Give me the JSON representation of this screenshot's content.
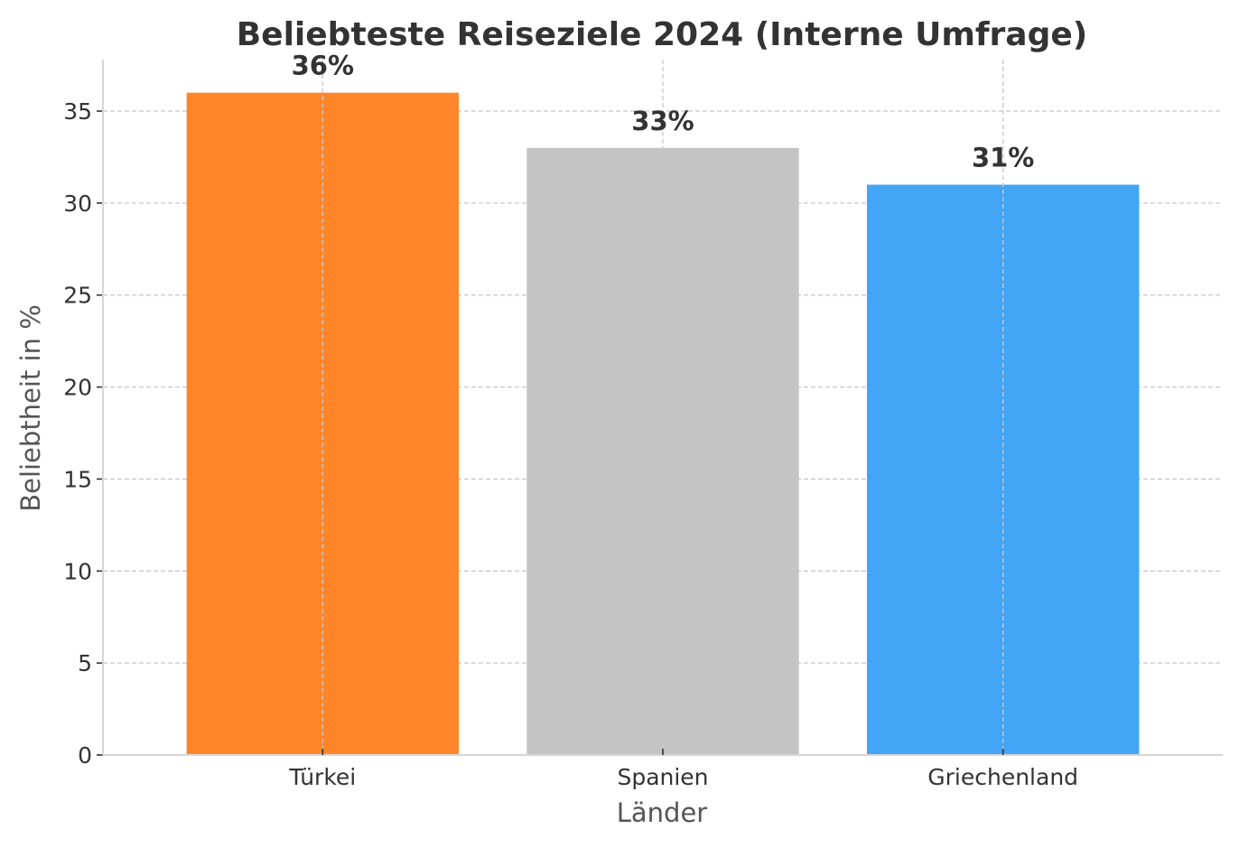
{
  "chart_data": {
    "type": "bar",
    "title": "Beliebteste Reiseziele 2024 (Interne Umfrage)",
    "xlabel": "Länder",
    "ylabel": "Beliebtheit in %",
    "categories": [
      "Türkei",
      "Spanien",
      "Griechenland"
    ],
    "values": [
      36,
      33,
      31
    ],
    "data_labels": [
      "36%",
      "33%",
      "31%"
    ],
    "colors": [
      "#ff8528",
      "#c4c4c4",
      "#42a5f5"
    ],
    "ylim": [
      0,
      37.8
    ],
    "yticks": [
      0,
      5,
      10,
      15,
      20,
      25,
      30,
      35
    ],
    "grid": true,
    "legend": "none"
  }
}
